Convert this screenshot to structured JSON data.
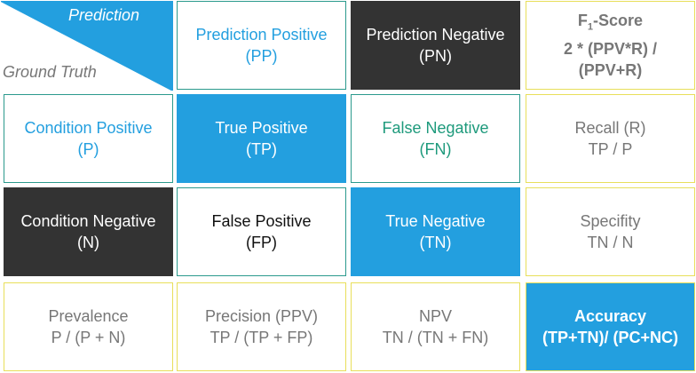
{
  "corner": {
    "prediction": "Prediction",
    "ground_truth": "Ground Truth"
  },
  "header": {
    "pp": {
      "line1": "Prediction Positive",
      "line2": "(PP)"
    },
    "pn": {
      "line1": "Prediction Negative",
      "line2": "(PN)"
    },
    "f1": {
      "line1_main": "F",
      "line1_sub": "1",
      "line1_rest": "-Score",
      "line2": "2 * (PPV*R) /",
      "line3": "(PPV+R)"
    }
  },
  "rows": {
    "p": {
      "line1": "Condition Positive",
      "line2": "(P)"
    },
    "n": {
      "line1": "Condition Negative",
      "line2": "(N)"
    },
    "tp": {
      "line1": "True Positive",
      "line2": "(TP)"
    },
    "fn": {
      "line1": "False Negative",
      "line2": "(FN)"
    },
    "fp": {
      "line1": "False Positive",
      "line2": "(FP)"
    },
    "tn": {
      "line1": "True Negative",
      "line2": "(TN)"
    },
    "recall": {
      "line1": "Recall (R)",
      "line2": "TP / P"
    },
    "specifity": {
      "line1": "Specifity",
      "line2": "TN / N"
    }
  },
  "bottom": {
    "prevalence": {
      "line1": "Prevalence",
      "line2": "P / (P + N)"
    },
    "precision": {
      "line1": "Precision (PPV)",
      "line2": "TP / (TP + FP)"
    },
    "npv": {
      "line1": "NPV",
      "line2": "TN / (TN + FN)"
    },
    "accuracy": {
      "line1": "Accuracy",
      "line2": "(TP+TN)/ (PC+NC)"
    }
  },
  "colors": {
    "blue": "#239fdf",
    "dark": "#333333",
    "teal_border": "#2b9a8d",
    "yellow_border": "#e8df5a",
    "green_text": "#1e9a7c",
    "gray_text": "#777777"
  }
}
